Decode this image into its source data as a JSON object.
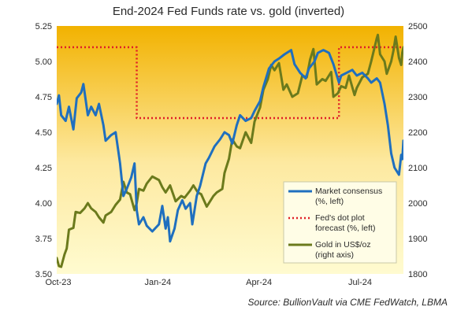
{
  "chart_data": {
    "type": "line",
    "title": "End-2024 Fed Funds rate vs. gold (inverted)",
    "source": "Source: BullionVault via CME FedWatch, LBMA",
    "x_axis": {
      "range": [
        "2023-10-02",
        "2024-08-09"
      ],
      "ticks": [
        {
          "date": "2023-10-02",
          "label": "Oct-23"
        },
        {
          "date": "2024-01-01",
          "label": "Jan-24"
        },
        {
          "date": "2024-04-01",
          "label": "Apr-24"
        },
        {
          "date": "2024-07-01",
          "label": "Jul-24"
        }
      ]
    },
    "y_left": {
      "range": [
        3.5,
        5.25
      ],
      "ticks": [
        "3.50",
        "3.75",
        "4.00",
        "4.25",
        "4.50",
        "4.75",
        "5.00",
        "5.25"
      ]
    },
    "y_right": {
      "range": [
        1800,
        2500
      ],
      "ticks": [
        "1800",
        "1900",
        "2000",
        "2100",
        "2200",
        "2300",
        "2400",
        "2500"
      ]
    },
    "series": [
      {
        "name": "Market consensus (%, left)",
        "label_lines": [
          "Market consensus",
          "(%, left)"
        ],
        "axis": "left",
        "color": "#1f6fbf",
        "points": [
          [
            "2023-10-02",
            4.7
          ],
          [
            "2023-10-04",
            4.76
          ],
          [
            "2023-10-06",
            4.62
          ],
          [
            "2023-10-10",
            4.58
          ],
          [
            "2023-10-13",
            4.68
          ],
          [
            "2023-10-17",
            4.52
          ],
          [
            "2023-10-20",
            4.74
          ],
          [
            "2023-10-24",
            4.78
          ],
          [
            "2023-10-26",
            4.84
          ],
          [
            "2023-10-30",
            4.62
          ],
          [
            "2023-11-02",
            4.68
          ],
          [
            "2023-11-06",
            4.62
          ],
          [
            "2023-11-09",
            4.7
          ],
          [
            "2023-11-13",
            4.55
          ],
          [
            "2023-11-15",
            4.44
          ],
          [
            "2023-11-20",
            4.48
          ],
          [
            "2023-11-24",
            4.5
          ],
          [
            "2023-11-28",
            4.28
          ],
          [
            "2023-12-01",
            4.05
          ],
          [
            "2023-12-04",
            4.1
          ],
          [
            "2023-12-08",
            4.18
          ],
          [
            "2023-12-11",
            4.28
          ],
          [
            "2023-12-13",
            3.95
          ],
          [
            "2023-12-15",
            3.85
          ],
          [
            "2023-12-19",
            3.9
          ],
          [
            "2023-12-22",
            3.84
          ],
          [
            "2023-12-27",
            3.8
          ],
          [
            "2024-01-02",
            3.85
          ],
          [
            "2024-01-05",
            3.98
          ],
          [
            "2024-01-08",
            3.82
          ],
          [
            "2024-01-10",
            3.9
          ],
          [
            "2024-01-12",
            3.73
          ],
          [
            "2024-01-16",
            3.82
          ],
          [
            "2024-01-19",
            3.95
          ],
          [
            "2024-01-23",
            4.02
          ],
          [
            "2024-01-26",
            3.96
          ],
          [
            "2024-01-30",
            4.0
          ],
          [
            "2024-02-01",
            3.85
          ],
          [
            "2024-02-05",
            4.05
          ],
          [
            "2024-02-08",
            4.12
          ],
          [
            "2024-02-13",
            4.28
          ],
          [
            "2024-02-16",
            4.32
          ],
          [
            "2024-02-21",
            4.4
          ],
          [
            "2024-02-26",
            4.45
          ],
          [
            "2024-03-01",
            4.5
          ],
          [
            "2024-03-05",
            4.48
          ],
          [
            "2024-03-08",
            4.42
          ],
          [
            "2024-03-12",
            4.55
          ],
          [
            "2024-03-15",
            4.62
          ],
          [
            "2024-03-20",
            4.58
          ],
          [
            "2024-03-25",
            4.6
          ],
          [
            "2024-03-28",
            4.65
          ],
          [
            "2024-04-02",
            4.72
          ],
          [
            "2024-04-05",
            4.82
          ],
          [
            "2024-04-10",
            4.95
          ],
          [
            "2024-04-15",
            5.0
          ],
          [
            "2024-04-19",
            5.02
          ],
          [
            "2024-04-24",
            5.05
          ],
          [
            "2024-04-30",
            5.08
          ],
          [
            "2024-05-03",
            4.98
          ],
          [
            "2024-05-08",
            4.92
          ],
          [
            "2024-05-13",
            4.88
          ],
          [
            "2024-05-16",
            4.95
          ],
          [
            "2024-05-21",
            5.0
          ],
          [
            "2024-05-24",
            5.06
          ],
          [
            "2024-05-29",
            5.08
          ],
          [
            "2024-06-03",
            5.06
          ],
          [
            "2024-06-07",
            4.98
          ],
          [
            "2024-06-12",
            4.85
          ],
          [
            "2024-06-14",
            4.9
          ],
          [
            "2024-06-19",
            4.92
          ],
          [
            "2024-06-24",
            4.94
          ],
          [
            "2024-06-28",
            4.9
          ],
          [
            "2024-07-03",
            4.92
          ],
          [
            "2024-07-08",
            4.88
          ],
          [
            "2024-07-11",
            4.85
          ],
          [
            "2024-07-16",
            4.88
          ],
          [
            "2024-07-19",
            4.85
          ],
          [
            "2024-07-23",
            4.7
          ],
          [
            "2024-07-26",
            4.55
          ],
          [
            "2024-07-29",
            4.35
          ],
          [
            "2024-08-01",
            4.25
          ],
          [
            "2024-08-05",
            4.2
          ],
          [
            "2024-08-07",
            4.34
          ],
          [
            "2024-08-08",
            4.31
          ],
          [
            "2024-08-09",
            4.44
          ]
        ]
      },
      {
        "name": "Fed's dot plot forecast (%, left)",
        "label_lines": [
          "Fed's dot plot",
          "forecast (%, left)"
        ],
        "axis": "left",
        "color": "#e01f26",
        "points": [
          [
            "2023-10-02",
            5.1
          ],
          [
            "2023-12-13",
            5.1
          ],
          [
            "2023-12-13",
            4.6
          ],
          [
            "2024-06-12",
            4.6
          ],
          [
            "2024-06-12",
            5.1
          ],
          [
            "2024-08-09",
            5.1
          ]
        ]
      },
      {
        "name": "Gold in US$/oz (right axis)",
        "label_lines": [
          "Gold in US$/oz",
          "(right axis)"
        ],
        "axis": "right",
        "color": "#6b7a1c",
        "points": [
          [
            "2023-10-02",
            1845
          ],
          [
            "2023-10-04",
            1822
          ],
          [
            "2023-10-06",
            1820
          ],
          [
            "2023-10-09",
            1855
          ],
          [
            "2023-10-11",
            1872
          ],
          [
            "2023-10-13",
            1925
          ],
          [
            "2023-10-17",
            1930
          ],
          [
            "2023-10-19",
            1975
          ],
          [
            "2023-10-23",
            1972
          ],
          [
            "2023-10-27",
            1985
          ],
          [
            "2023-10-30",
            2000
          ],
          [
            "2023-11-02",
            1985
          ],
          [
            "2023-11-06",
            1975
          ],
          [
            "2023-11-09",
            1960
          ],
          [
            "2023-11-13",
            1945
          ],
          [
            "2023-11-15",
            1965
          ],
          [
            "2023-11-20",
            1975
          ],
          [
            "2023-11-24",
            1995
          ],
          [
            "2023-11-28",
            2010
          ],
          [
            "2023-12-01",
            2060
          ],
          [
            "2023-12-04",
            2030
          ],
          [
            "2023-12-07",
            2025
          ],
          [
            "2023-12-11",
            1980
          ],
          [
            "2023-12-13",
            2000
          ],
          [
            "2023-12-15",
            2040
          ],
          [
            "2023-12-19",
            2035
          ],
          [
            "2023-12-22",
            2055
          ],
          [
            "2023-12-27",
            2075
          ],
          [
            "2024-01-02",
            2065
          ],
          [
            "2024-01-05",
            2045
          ],
          [
            "2024-01-08",
            2030
          ],
          [
            "2024-01-12",
            2050
          ],
          [
            "2024-01-17",
            2005
          ],
          [
            "2024-01-22",
            2020
          ],
          [
            "2024-01-25",
            2015
          ],
          [
            "2024-01-30",
            2035
          ],
          [
            "2024-02-02",
            2050
          ],
          [
            "2024-02-06",
            2030
          ],
          [
            "2024-02-09",
            2025
          ],
          [
            "2024-02-14",
            1990
          ],
          [
            "2024-02-20",
            2020
          ],
          [
            "2024-02-23",
            2030
          ],
          [
            "2024-02-28",
            2040
          ],
          [
            "2024-03-01",
            2085
          ],
          [
            "2024-03-05",
            2125
          ],
          [
            "2024-03-08",
            2180
          ],
          [
            "2024-03-12",
            2160
          ],
          [
            "2024-03-15",
            2155
          ],
          [
            "2024-03-20",
            2200
          ],
          [
            "2024-03-25",
            2170
          ],
          [
            "2024-03-28",
            2230
          ],
          [
            "2024-04-02",
            2270
          ],
          [
            "2024-04-05",
            2320
          ],
          [
            "2024-04-09",
            2350
          ],
          [
            "2024-04-12",
            2390
          ],
          [
            "2024-04-15",
            2375
          ],
          [
            "2024-04-19",
            2395
          ],
          [
            "2024-04-23",
            2320
          ],
          [
            "2024-04-26",
            2335
          ],
          [
            "2024-05-01",
            2300
          ],
          [
            "2024-05-06",
            2310
          ],
          [
            "2024-05-10",
            2360
          ],
          [
            "2024-05-14",
            2355
          ],
          [
            "2024-05-17",
            2405
          ],
          [
            "2024-05-20",
            2435
          ],
          [
            "2024-05-23",
            2335
          ],
          [
            "2024-05-28",
            2350
          ],
          [
            "2024-05-31",
            2345
          ],
          [
            "2024-06-05",
            2370
          ],
          [
            "2024-06-07",
            2300
          ],
          [
            "2024-06-11",
            2310
          ],
          [
            "2024-06-14",
            2330
          ],
          [
            "2024-06-18",
            2325
          ],
          [
            "2024-06-21",
            2360
          ],
          [
            "2024-06-26",
            2305
          ],
          [
            "2024-06-28",
            2325
          ],
          [
            "2024-07-03",
            2355
          ],
          [
            "2024-07-08",
            2365
          ],
          [
            "2024-07-11",
            2400
          ],
          [
            "2024-07-16",
            2465
          ],
          [
            "2024-07-17",
            2475
          ],
          [
            "2024-07-19",
            2420
          ],
          [
            "2024-07-23",
            2400
          ],
          [
            "2024-07-25",
            2365
          ],
          [
            "2024-07-29",
            2400
          ],
          [
            "2024-07-31",
            2430
          ],
          [
            "2024-08-02",
            2470
          ],
          [
            "2024-08-05",
            2410
          ],
          [
            "2024-08-07",
            2390
          ],
          [
            "2024-08-08",
            2425
          ],
          [
            "2024-08-09",
            2440
          ]
        ]
      }
    ],
    "legend_position": "bottom-right",
    "colors": {
      "background_top": "#f2b200",
      "background_bottom": "#fffbd0"
    }
  }
}
